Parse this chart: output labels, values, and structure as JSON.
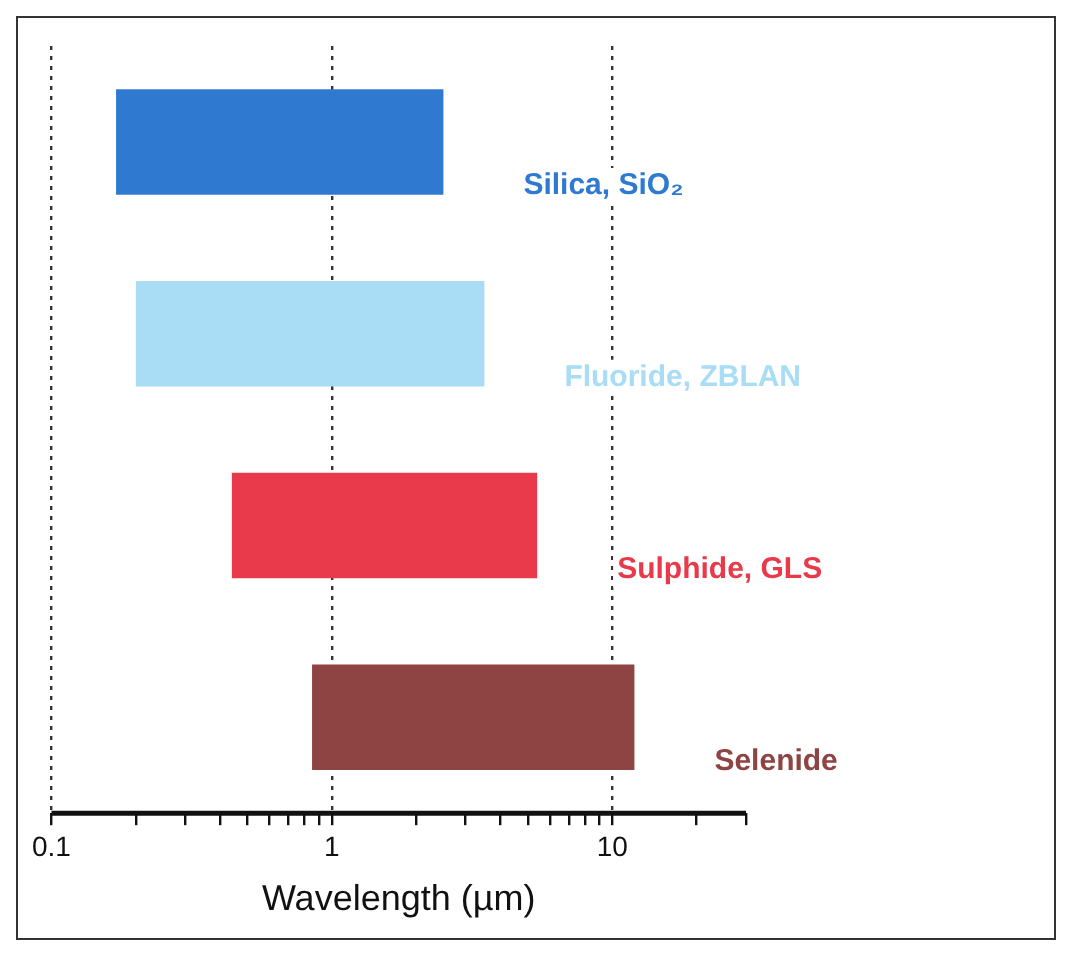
{
  "chart_data": {
    "type": "bar",
    "orientation": "horizontal",
    "xlabel": "Wavelength (µm)",
    "log": "x",
    "grid": "x",
    "tick_labels": "x",
    "legend": false,
    "categories": [
      "Silica, SiO₂",
      "Fluoride, ZBLAN",
      "Sulphide, GLS",
      "Selenide"
    ],
    "base": [
      0.17,
      0.2,
      0.44,
      0.85
    ],
    "values": [
      2.33,
      3.3,
      4.96,
      11.15
    ],
    "colors": [
      "#2f7ad0",
      "#a8ddf5",
      "#e83a4a",
      "#8f4444"
    ],
    "xlim": [
      0.1,
      30
    ],
    "xticks": [
      0.1,
      {
        "value": 0.2,
        "label": null
      },
      {
        "value": 0.3,
        "label": null
      },
      {
        "value": 0.4,
        "label": null
      },
      {
        "value": 0.5,
        "label": null
      },
      {
        "value": 0.6,
        "label": null
      },
      {
        "value": 0.7,
        "label": null
      },
      {
        "value": 0.8,
        "label": null
      },
      {
        "value": 0.9,
        "label": null
      },
      1,
      {
        "value": 2,
        "label": null
      },
      {
        "value": 3,
        "label": null
      },
      {
        "value": 4,
        "label": null
      },
      {
        "value": 5,
        "label": null
      },
      {
        "value": 6,
        "label": null
      },
      {
        "value": 7,
        "label": null
      },
      {
        "value": 8,
        "label": null
      },
      {
        "value": 9,
        "label": null
      },
      10,
      {
        "value": 20,
        "label": null
      },
      {
        "value": 30,
        "label": null
      }
    ]
  }
}
